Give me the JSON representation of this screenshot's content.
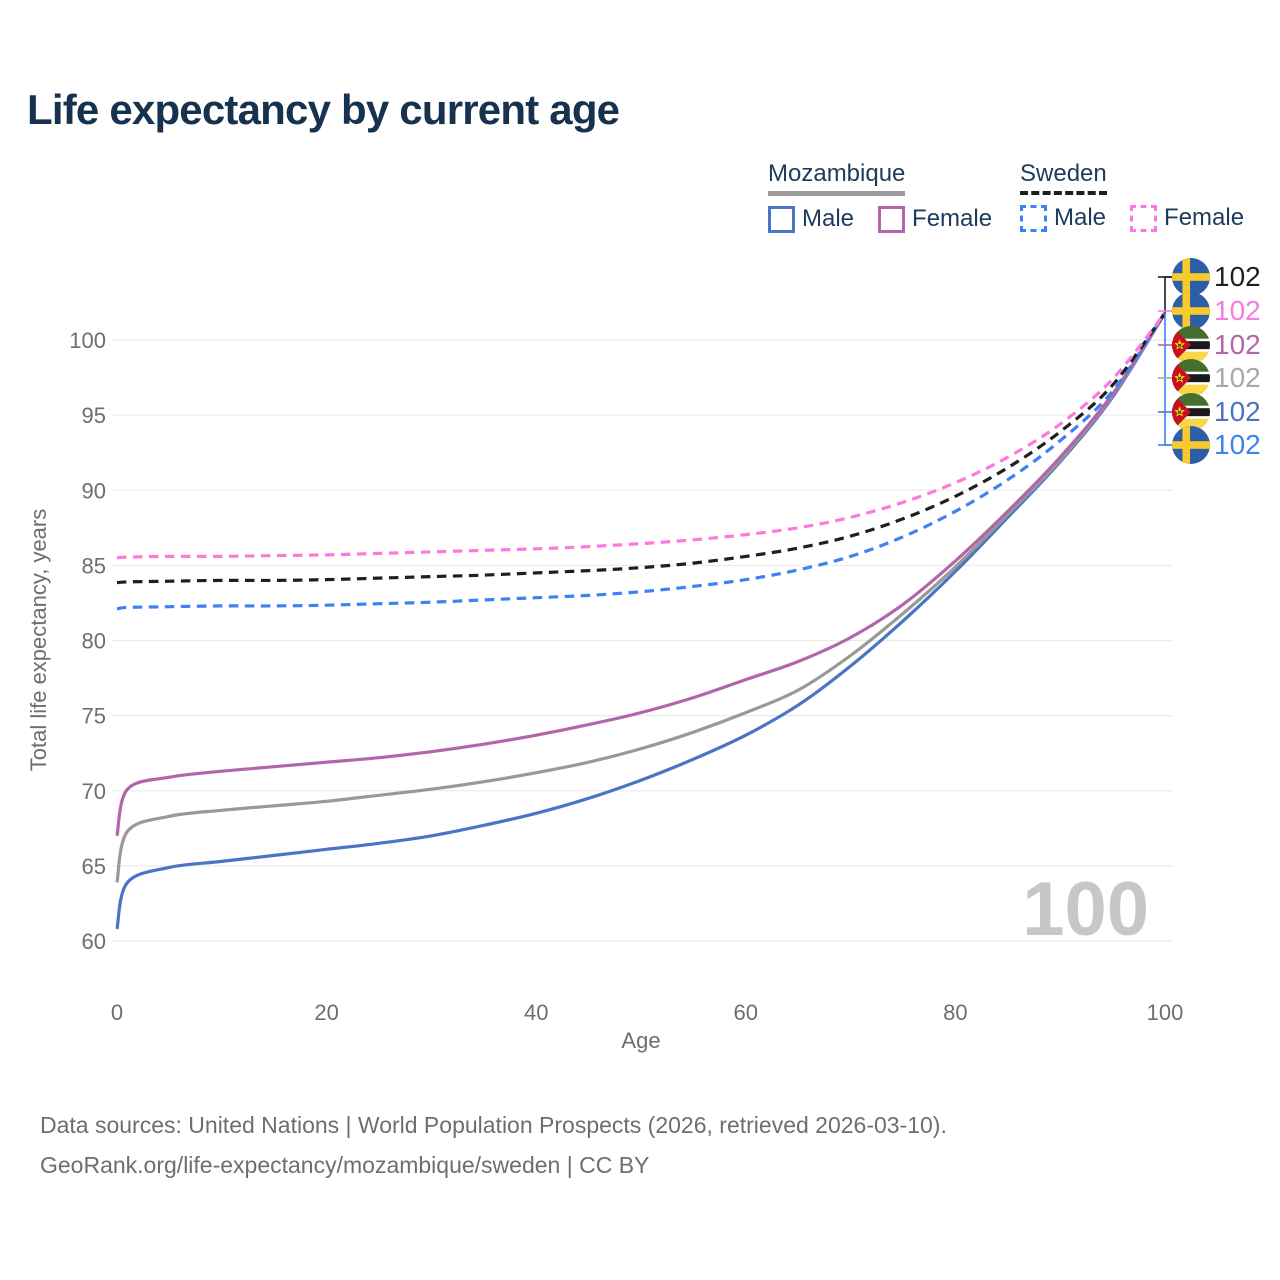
{
  "header": {
    "title": "Life expectancy by current age"
  },
  "legend": {
    "groups": [
      {
        "label": "Mozambique",
        "line_style": "solid",
        "line_color": "#9a9a9a",
        "items": [
          {
            "label": "Male",
            "color": "#4a74c4",
            "style": "solid"
          },
          {
            "label": "Female",
            "color": "#b266a9",
            "style": "solid"
          }
        ]
      },
      {
        "label": "Sweden",
        "line_style": "dashed",
        "line_color": "#1f1f1f",
        "items": [
          {
            "label": "Male",
            "color": "#3d82f2",
            "style": "dashed"
          },
          {
            "label": "Female",
            "color": "#fb7ae0",
            "style": "dashed"
          }
        ]
      }
    ]
  },
  "chart_data": {
    "type": "line",
    "title": "Life expectancy by current age",
    "xlabel": "Age",
    "ylabel": "Total life expectancy, years",
    "xlim": [
      0,
      100
    ],
    "ylim": [
      60,
      102
    ],
    "xticks": [
      0,
      20,
      40,
      60,
      80,
      100
    ],
    "yticks": [
      60,
      65,
      70,
      75,
      80,
      85,
      90,
      95,
      100
    ],
    "grid": "horizontal",
    "legend_position": "top-right",
    "watermark": "100",
    "series": [
      {
        "name": "mozambique-male",
        "country": "Mozambique",
        "sex": "Male",
        "color": "#4a74c4",
        "dash": false,
        "points": [
          [
            0,
            60.8
          ],
          [
            1,
            63.9
          ],
          [
            5,
            64.9
          ],
          [
            10,
            65.3
          ],
          [
            15,
            65.7
          ],
          [
            20,
            66.1
          ],
          [
            25,
            66.5
          ],
          [
            30,
            67.0
          ],
          [
            35,
            67.7
          ],
          [
            40,
            68.5
          ],
          [
            45,
            69.5
          ],
          [
            50,
            70.7
          ],
          [
            55,
            72.1
          ],
          [
            60,
            73.7
          ],
          [
            65,
            75.7
          ],
          [
            70,
            78.3
          ],
          [
            75,
            81.3
          ],
          [
            80,
            84.6
          ],
          [
            85,
            88.2
          ],
          [
            90,
            91.9
          ],
          [
            95,
            96.2
          ],
          [
            100,
            101.8
          ]
        ]
      },
      {
        "name": "mozambique-all",
        "country": "Mozambique",
        "sex": "Both",
        "color": "#999999",
        "dash": false,
        "points": [
          [
            0,
            63.9
          ],
          [
            1,
            67.3
          ],
          [
            5,
            68.3
          ],
          [
            10,
            68.7
          ],
          [
            15,
            69.0
          ],
          [
            20,
            69.3
          ],
          [
            25,
            69.7
          ],
          [
            30,
            70.1
          ],
          [
            35,
            70.6
          ],
          [
            40,
            71.2
          ],
          [
            45,
            71.9
          ],
          [
            50,
            72.8
          ],
          [
            55,
            73.9
          ],
          [
            60,
            75.2
          ],
          [
            65,
            76.7
          ],
          [
            70,
            79.0
          ],
          [
            75,
            81.8
          ],
          [
            80,
            84.9
          ],
          [
            85,
            88.4
          ],
          [
            90,
            92.0
          ],
          [
            95,
            96.3
          ],
          [
            100,
            101.8
          ]
        ]
      },
      {
        "name": "mozambique-female",
        "country": "Mozambique",
        "sex": "Female",
        "color": "#b266a9",
        "dash": false,
        "points": [
          [
            0,
            67.0
          ],
          [
            1,
            70.1
          ],
          [
            5,
            70.9
          ],
          [
            10,
            71.3
          ],
          [
            15,
            71.6
          ],
          [
            20,
            71.9
          ],
          [
            25,
            72.2
          ],
          [
            30,
            72.6
          ],
          [
            35,
            73.1
          ],
          [
            40,
            73.7
          ],
          [
            45,
            74.4
          ],
          [
            50,
            75.2
          ],
          [
            55,
            76.2
          ],
          [
            60,
            77.4
          ],
          [
            65,
            78.6
          ],
          [
            70,
            80.2
          ],
          [
            75,
            82.4
          ],
          [
            80,
            85.3
          ],
          [
            85,
            88.6
          ],
          [
            90,
            92.2
          ],
          [
            95,
            96.4
          ],
          [
            100,
            101.8
          ]
        ]
      },
      {
        "name": "sweden-male",
        "country": "Sweden",
        "sex": "Male",
        "color": "#3d82f2",
        "dash": true,
        "points": [
          [
            0,
            82.1
          ],
          [
            1,
            82.2
          ],
          [
            5,
            82.25
          ],
          [
            10,
            82.3
          ],
          [
            15,
            82.3
          ],
          [
            20,
            82.35
          ],
          [
            25,
            82.45
          ],
          [
            30,
            82.55
          ],
          [
            35,
            82.7
          ],
          [
            40,
            82.85
          ],
          [
            45,
            83.0
          ],
          [
            50,
            83.25
          ],
          [
            55,
            83.6
          ],
          [
            60,
            84.05
          ],
          [
            65,
            84.7
          ],
          [
            70,
            85.6
          ],
          [
            75,
            86.9
          ],
          [
            80,
            88.6
          ],
          [
            85,
            90.7
          ],
          [
            90,
            93.3
          ],
          [
            95,
            96.6
          ],
          [
            100,
            101.8
          ]
        ]
      },
      {
        "name": "sweden-all",
        "country": "Sweden",
        "sex": "Both",
        "color": "#1f1f1f",
        "dash": true,
        "points": [
          [
            0,
            83.85
          ],
          [
            1,
            83.9
          ],
          [
            5,
            83.95
          ],
          [
            10,
            84.0
          ],
          [
            15,
            84.0
          ],
          [
            20,
            84.05
          ],
          [
            25,
            84.15
          ],
          [
            30,
            84.25
          ],
          [
            35,
            84.35
          ],
          [
            40,
            84.5
          ],
          [
            45,
            84.65
          ],
          [
            50,
            84.85
          ],
          [
            55,
            85.15
          ],
          [
            60,
            85.6
          ],
          [
            65,
            86.15
          ],
          [
            70,
            86.95
          ],
          [
            75,
            88.1
          ],
          [
            80,
            89.6
          ],
          [
            85,
            91.5
          ],
          [
            90,
            93.9
          ],
          [
            95,
            97.0
          ],
          [
            100,
            101.8
          ]
        ]
      },
      {
        "name": "sweden-female",
        "country": "Sweden",
        "sex": "Female",
        "color": "#fb7ae0",
        "dash": true,
        "points": [
          [
            0,
            85.5
          ],
          [
            1,
            85.55
          ],
          [
            5,
            85.6
          ],
          [
            10,
            85.6
          ],
          [
            15,
            85.65
          ],
          [
            20,
            85.7
          ],
          [
            25,
            85.8
          ],
          [
            30,
            85.9
          ],
          [
            35,
            86.0
          ],
          [
            40,
            86.1
          ],
          [
            45,
            86.25
          ],
          [
            50,
            86.45
          ],
          [
            55,
            86.7
          ],
          [
            60,
            87.05
          ],
          [
            65,
            87.5
          ],
          [
            70,
            88.2
          ],
          [
            75,
            89.2
          ],
          [
            80,
            90.5
          ],
          [
            85,
            92.2
          ],
          [
            90,
            94.4
          ],
          [
            95,
            97.4
          ],
          [
            100,
            101.8
          ]
        ]
      }
    ],
    "end_labels": [
      {
        "value": "102",
        "flag": "sweden",
        "series": "sweden-all",
        "color": "#1f1f1f"
      },
      {
        "value": "102",
        "flag": "sweden",
        "series": "sweden-female",
        "color": "#fb7ae0"
      },
      {
        "value": "102",
        "flag": "mozambique",
        "series": "mozambique-female",
        "color": "#b266a9"
      },
      {
        "value": "102",
        "flag": "mozambique",
        "series": "mozambique-all",
        "color": "#a8a8a8"
      },
      {
        "value": "102",
        "flag": "mozambique",
        "series": "mozambique-male",
        "color": "#4a74c4"
      },
      {
        "value": "102",
        "flag": "sweden",
        "series": "sweden-male",
        "color": "#3d82f2"
      }
    ]
  },
  "footer": {
    "line1": "Data sources: United Nations | World Population Prospects (2026, retrieved 2026-03-10).",
    "line2": "GeoRank.org/life-expectancy/mozambique/sweden | CC BY"
  }
}
